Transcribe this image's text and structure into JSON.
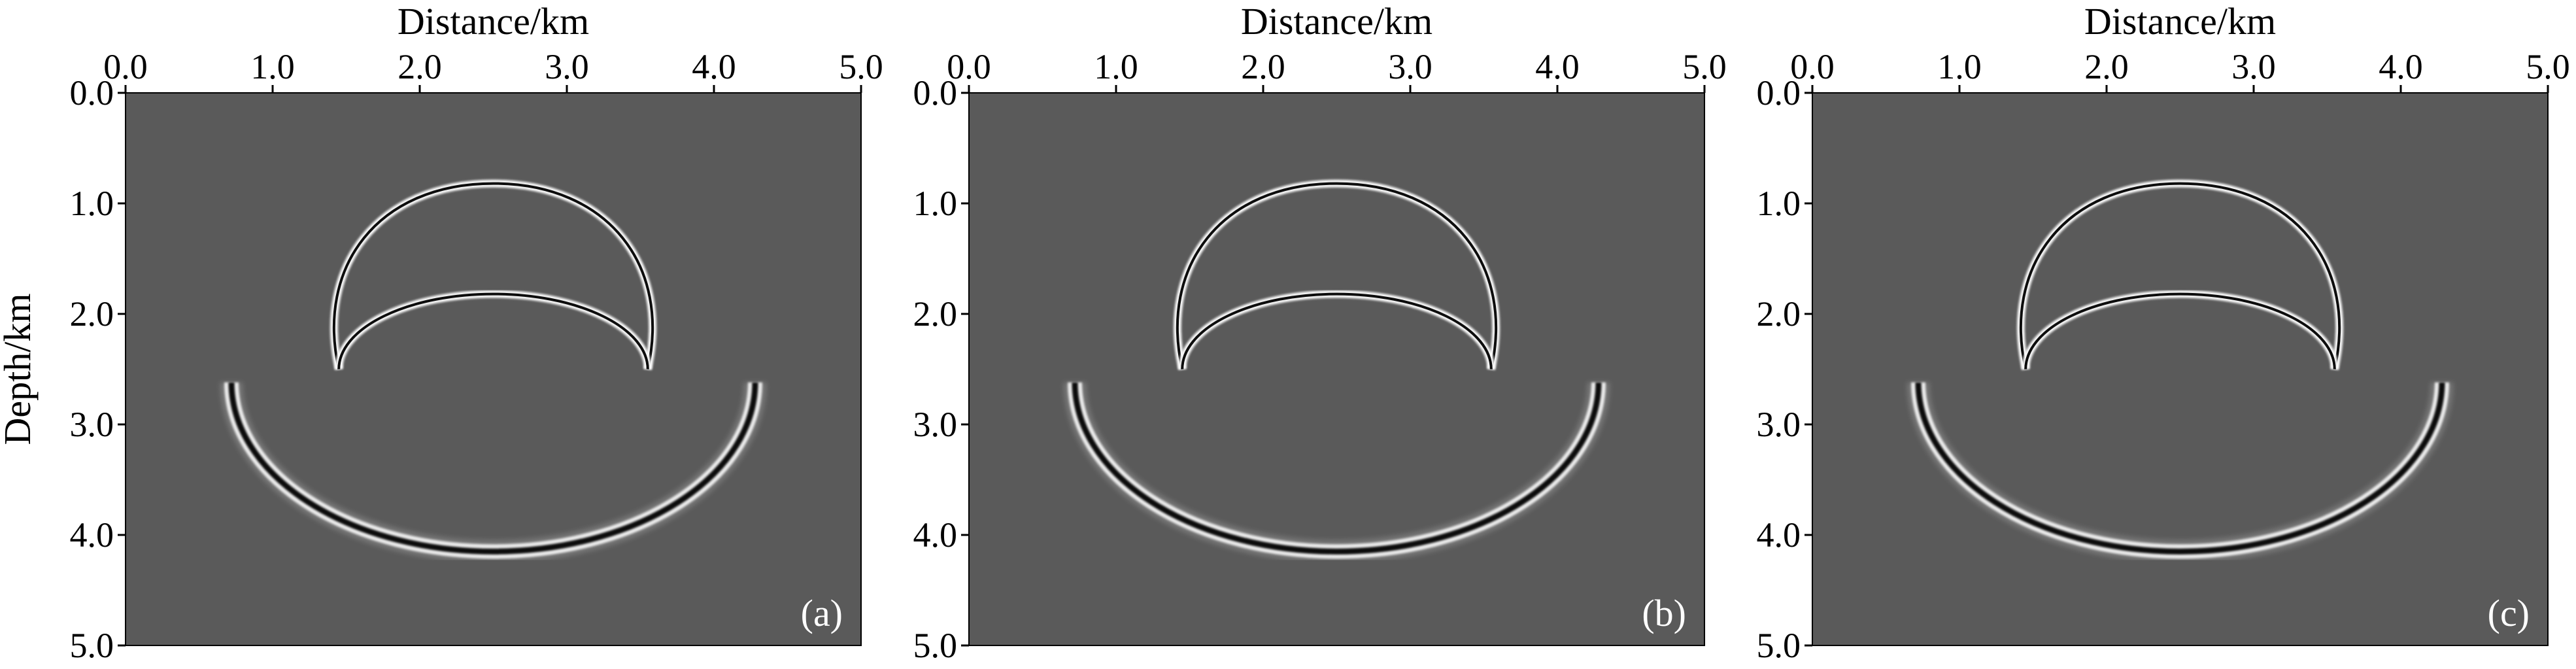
{
  "figure": {
    "background_color": "#5a5a5a",
    "wave_color_dark": "#000000",
    "wave_color_light": "#ffffff"
  },
  "chart_data": [
    {
      "type": "heatmap",
      "panel_label": "(a)",
      "xlabel": "Distance/km",
      "ylabel": "Depth/km",
      "xlim": [
        0.0,
        5.0
      ],
      "ylim": [
        0.0,
        5.0
      ],
      "x_axis_position": "top",
      "y_inverted": true,
      "xticks": [
        "0.0",
        "1.0",
        "2.0",
        "3.0",
        "4.0",
        "5.0"
      ],
      "yticks": [
        "0.0",
        "1.0",
        "2.0",
        "3.0",
        "4.0",
        "5.0"
      ],
      "grid": false,
      "events": [
        {
          "kind": "upper-arc",
          "center_x": 2.5,
          "top_depth": 0.82,
          "end_left_x": 1.45,
          "end_right_x": 3.55,
          "end_depth": 2.5
        },
        {
          "kind": "lower-arc",
          "center_x": 2.5,
          "top_depth": 1.82,
          "end_left_x": 1.45,
          "end_right_x": 3.55,
          "end_depth": 2.5
        },
        {
          "kind": "bowl",
          "center_x": 2.5,
          "bottom_depth": 4.15,
          "end_left_x": 0.72,
          "end_right_x": 4.28,
          "end_depth": 2.62
        }
      ]
    },
    {
      "type": "heatmap",
      "panel_label": "(b)",
      "xlabel": "Distance/km",
      "xlim": [
        0.0,
        5.0
      ],
      "ylim": [
        0.0,
        5.0
      ],
      "x_axis_position": "top",
      "y_inverted": true,
      "xticks": [
        "0.0",
        "1.0",
        "2.0",
        "3.0",
        "4.0",
        "5.0"
      ],
      "yticks": [
        "0.0",
        "1.0",
        "2.0",
        "3.0",
        "4.0",
        "5.0"
      ],
      "grid": false,
      "events": [
        {
          "kind": "upper-arc",
          "center_x": 2.5,
          "top_depth": 0.82,
          "end_left_x": 1.45,
          "end_right_x": 3.55,
          "end_depth": 2.5
        },
        {
          "kind": "lower-arc",
          "center_x": 2.5,
          "top_depth": 1.82,
          "end_left_x": 1.45,
          "end_right_x": 3.55,
          "end_depth": 2.5
        },
        {
          "kind": "bowl",
          "center_x": 2.5,
          "bottom_depth": 4.15,
          "end_left_x": 0.72,
          "end_right_x": 4.28,
          "end_depth": 2.62
        }
      ]
    },
    {
      "type": "heatmap",
      "panel_label": "(c)",
      "xlabel": "Distance/km",
      "xlim": [
        0.0,
        5.0
      ],
      "ylim": [
        0.0,
        5.0
      ],
      "x_axis_position": "top",
      "y_inverted": true,
      "xticks": [
        "0.0",
        "1.0",
        "2.0",
        "3.0",
        "4.0",
        "5.0"
      ],
      "yticks": [
        "0.0",
        "1.0",
        "2.0",
        "3.0",
        "4.0",
        "5.0"
      ],
      "grid": false,
      "events": [
        {
          "kind": "upper-arc",
          "center_x": 2.5,
          "top_depth": 0.82,
          "end_left_x": 1.45,
          "end_right_x": 3.55,
          "end_depth": 2.5
        },
        {
          "kind": "lower-arc",
          "center_x": 2.5,
          "top_depth": 1.82,
          "end_left_x": 1.45,
          "end_right_x": 3.55,
          "end_depth": 2.5
        },
        {
          "kind": "bowl",
          "center_x": 2.5,
          "bottom_depth": 4.15,
          "end_left_x": 0.72,
          "end_right_x": 4.28,
          "end_depth": 2.62
        }
      ]
    }
  ]
}
